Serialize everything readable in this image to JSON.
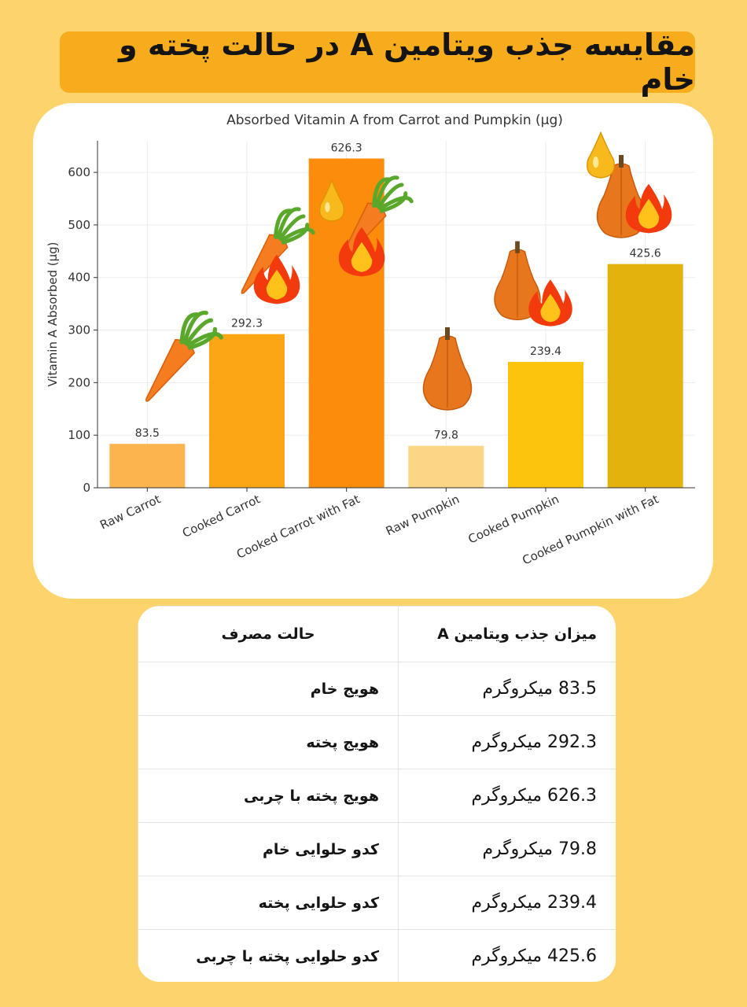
{
  "header": {
    "title": "مقایسه جذب ویتامین A در حالت پخته و خام"
  },
  "chart_data": {
    "type": "bar",
    "title": "Absorbed Vitamin A from Carrot and Pumpkin (µg)",
    "xlabel": "",
    "ylabel": "Vitamin A Absorbed (µg)",
    "ylim": [
      0,
      660
    ],
    "yticks": [
      0,
      100,
      200,
      300,
      400,
      500,
      600
    ],
    "grid": true,
    "categories": [
      "Raw Carrot",
      "Cooked Carrot",
      "Cooked Carrot with Fat",
      "Raw Pumpkin",
      "Cooked Pumpkin",
      "Cooked Pumpkin with Fat"
    ],
    "values": [
      83.5,
      292.3,
      626.3,
      79.8,
      239.4,
      425.6
    ],
    "value_labels": [
      "83.5",
      "292.3",
      "626.3",
      "79.8",
      "239.4",
      "425.6"
    ],
    "colors": [
      "#fcb44e",
      "#fca616",
      "#fc8c0c",
      "#fdd586",
      "#fdc40d",
      "#e4b20d"
    ],
    "icons": [
      "carrot-icon",
      "cooked-carrot-icon",
      "carrot-with-fat-icon",
      "pumpkin-icon",
      "cooked-pumpkin-icon",
      "pumpkin-with-fat-icon"
    ]
  },
  "table": {
    "headers": {
      "amount": "میزان جذب ویتامین A",
      "state": "حالت مصرف"
    },
    "unit": "میکروگرم",
    "rows": [
      {
        "state": "هویج خام",
        "amount": "83.5"
      },
      {
        "state": "هویج پخته",
        "amount": "292.3"
      },
      {
        "state": "هویج پخته با چربی",
        "amount": "626.3"
      },
      {
        "state": "کدو حلوایی خام",
        "amount": "79.8"
      },
      {
        "state": "کدو حلوایی پخته",
        "amount": "239.4"
      },
      {
        "state": "کدو حلوایی پخته با چربی",
        "amount": "425.6"
      }
    ]
  }
}
